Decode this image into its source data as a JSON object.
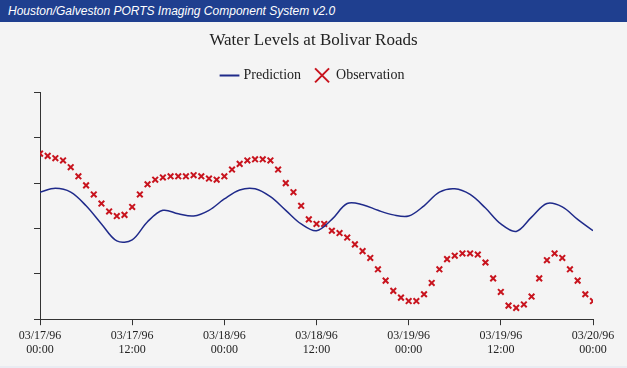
{
  "window_title": "Houston/Galveston PORTS Imaging Component System v2.0",
  "chart_data": {
    "type": "line",
    "title": "Water Levels at Bolivar Roads",
    "xlim": [
      0,
      72
    ],
    "xticks": [
      {
        "value": 0,
        "label": "03/17/96 00:00"
      },
      {
        "value": 12,
        "label": "03/17/96 12:00"
      },
      {
        "value": 24,
        "label": "03/18/96 00:00"
      },
      {
        "value": 36,
        "label": "03/18/96 12:00"
      },
      {
        "value": 48,
        "label": "03/19/96 00:00"
      },
      {
        "value": 60,
        "label": "03/19/96 12:00"
      },
      {
        "value": 72,
        "label": "03/20/96 00:00"
      }
    ],
    "ylim": [
      0,
      10
    ],
    "yticks": [
      0,
      2,
      4,
      6,
      8,
      10
    ],
    "tick_labels": "x",
    "grid": false,
    "legend": "top",
    "series": [
      {
        "name": "Prediction",
        "color": "#1f2a8a",
        "marker": "none",
        "line_style": "solid",
        "x": [
          0,
          2,
          4,
          6,
          8,
          10,
          12,
          14,
          16,
          18,
          20,
          22,
          24,
          26,
          28,
          30,
          32,
          34,
          36,
          38,
          40,
          42,
          44,
          46,
          48,
          50,
          52,
          54,
          56,
          58,
          60,
          62,
          64,
          66,
          68,
          70,
          72
        ],
        "values": [
          5.6,
          5.77,
          5.6,
          5.0,
          4.2,
          3.45,
          3.5,
          4.3,
          4.8,
          4.65,
          4.55,
          4.8,
          5.3,
          5.7,
          5.75,
          5.4,
          4.8,
          4.2,
          3.9,
          4.4,
          5.1,
          5.05,
          4.8,
          4.6,
          4.55,
          5.0,
          5.6,
          5.75,
          5.5,
          4.9,
          4.2,
          3.87,
          4.5,
          5.1,
          4.95,
          4.4,
          3.9
        ]
      },
      {
        "name": "Observation",
        "color": "#c8141e",
        "marker": "x",
        "line_style": "none",
        "x": [
          0,
          1,
          2,
          3,
          4,
          5,
          6,
          7,
          8,
          9,
          10,
          11,
          12,
          13,
          14,
          15,
          16,
          17,
          18,
          19,
          20,
          21,
          22,
          23,
          24,
          25,
          26,
          27,
          28,
          29,
          30,
          31,
          32,
          33,
          34,
          35,
          36,
          37,
          38,
          39,
          40,
          41,
          42,
          43,
          44,
          45,
          46,
          47,
          48,
          49,
          50,
          51,
          52,
          53,
          54,
          55,
          56,
          57,
          58,
          59,
          60,
          61,
          62,
          63,
          64,
          65,
          66,
          67,
          68,
          69,
          70,
          71,
          72
        ],
        "values": [
          7.3,
          7.2,
          7.1,
          7.0,
          6.7,
          6.3,
          5.9,
          5.5,
          5.1,
          4.75,
          4.55,
          4.6,
          4.95,
          5.5,
          5.95,
          6.15,
          6.25,
          6.3,
          6.3,
          6.3,
          6.35,
          6.3,
          6.2,
          6.15,
          6.3,
          6.6,
          6.85,
          7.0,
          7.05,
          7.05,
          7.0,
          6.6,
          6.0,
          5.6,
          5.0,
          4.4,
          4.2,
          4.2,
          3.9,
          3.8,
          3.6,
          3.3,
          3.0,
          2.7,
          2.2,
          1.7,
          1.25,
          0.95,
          0.8,
          0.8,
          1.1,
          1.6,
          2.2,
          2.65,
          2.8,
          2.9,
          2.9,
          2.85,
          2.5,
          1.8,
          1.2,
          0.6,
          0.5,
          0.65,
          1.0,
          1.8,
          2.6,
          2.9,
          2.7,
          2.2,
          1.7,
          1.1,
          0.8
        ]
      }
    ]
  }
}
